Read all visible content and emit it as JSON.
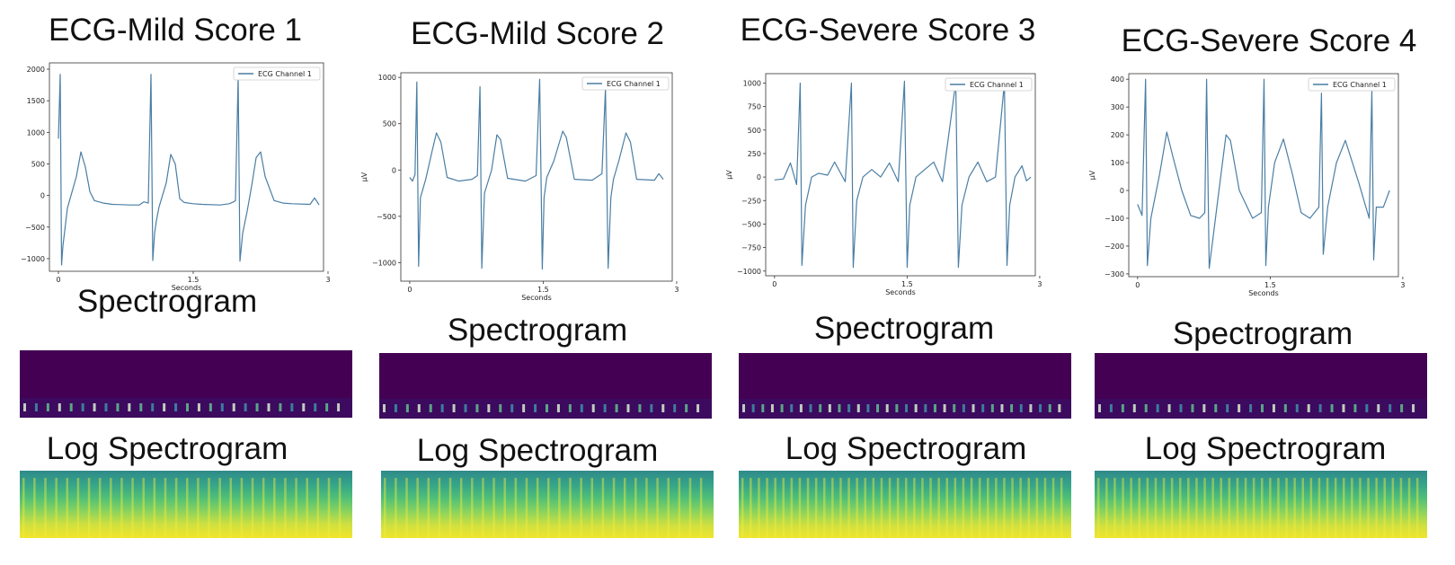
{
  "panels_meta": {
    "spectrogram_title": "Spectrogram",
    "log_spectrogram_title": "Log Spectrogram"
  },
  "chart_data": [
    {
      "type": "line",
      "title": "ECG-Mild Score 1",
      "xlabel": "Seconds",
      "ylabel": "",
      "xlim": [
        -0.1,
        2.95
      ],
      "ylim": [
        -1200,
        2100
      ],
      "xticks": [
        0,
        1.5,
        3
      ],
      "xtick_labels": [
        "0",
        "1.5",
        "3"
      ],
      "yticks": [
        -1000,
        -500,
        0,
        500,
        1000,
        1500,
        2000
      ],
      "ytick_labels": [
        "−1000",
        "−500",
        "0",
        "500",
        "1000",
        "1500",
        "2000"
      ],
      "legend": "top-right",
      "series": [
        {
          "name": "ECG Channel 1",
          "color": "#4a7ea4",
          "x": [
            0,
            0.02,
            0.035,
            0.05,
            0.1,
            0.2,
            0.25,
            0.3,
            0.35,
            0.4,
            0.5,
            0.6,
            0.8,
            0.9,
            0.95,
            1.0,
            1.03,
            1.05,
            1.07,
            1.09,
            1.12,
            1.2,
            1.25,
            1.3,
            1.35,
            1.4,
            1.5,
            1.6,
            1.8,
            1.9,
            1.95,
            1.97,
            2.0,
            2.02,
            2.05,
            2.1,
            2.15,
            2.2,
            2.25,
            2.3,
            2.4,
            2.5,
            2.6,
            2.8,
            2.85,
            2.88,
            2.9
          ],
          "y": [
            900,
            1920,
            -1100,
            -800,
            -200,
            300,
            690,
            450,
            60,
            -80,
            -120,
            -140,
            -150,
            -150,
            -100,
            -120,
            1920,
            -1030,
            -600,
            -400,
            -180,
            200,
            650,
            500,
            -50,
            -110,
            -130,
            -140,
            -150,
            -130,
            -100,
            -80,
            1880,
            -1040,
            -600,
            -250,
            150,
            600,
            690,
            300,
            -80,
            -120,
            -130,
            -140,
            -40,
            -100,
            -150
          ]
        }
      ]
    },
    {
      "type": "line",
      "title": "ECG-Mild Score 2",
      "xlabel": "Seconds",
      "ylabel": "μV",
      "xlim": [
        -0.1,
        2.95
      ],
      "ylim": [
        -1200,
        1050
      ],
      "xticks": [
        0,
        1.5,
        3
      ],
      "xtick_labels": [
        "0",
        "1.5",
        "3"
      ],
      "yticks": [
        -1000,
        -500,
        0,
        500,
        1000
      ],
      "ytick_labels": [
        "−1000",
        "−500",
        "0",
        "500",
        "1000"
      ],
      "legend": "top-right",
      "series": [
        {
          "name": "ECG Channel 1",
          "color": "#4a7ea4",
          "x": [
            0,
            0.03,
            0.06,
            0.08,
            0.1,
            0.12,
            0.18,
            0.25,
            0.3,
            0.35,
            0.42,
            0.55,
            0.7,
            0.76,
            0.79,
            0.81,
            0.84,
            0.92,
            0.98,
            1.02,
            1.1,
            1.3,
            1.42,
            1.46,
            1.49,
            1.51,
            1.54,
            1.62,
            1.72,
            1.76,
            1.85,
            2.05,
            2.16,
            2.2,
            2.23,
            2.26,
            2.29,
            2.35,
            2.43,
            2.48,
            2.55,
            2.75,
            2.8,
            2.85
          ],
          "y": [
            -80,
            -120,
            -50,
            950,
            -1040,
            -300,
            -100,
            200,
            400,
            300,
            -80,
            -120,
            -100,
            -60,
            900,
            -1060,
            -250,
            0,
            380,
            330,
            -90,
            -120,
            -60,
            980,
            -1070,
            -300,
            -80,
            100,
            420,
            350,
            -100,
            -110,
            -40,
            880,
            -1060,
            -300,
            -100,
            100,
            400,
            300,
            -100,
            -110,
            -40,
            -100
          ]
        }
      ]
    },
    {
      "type": "line",
      "title": "ECG-Severe Score 3",
      "xlabel": "Seconds",
      "ylabel": "μV",
      "xlim": [
        -0.1,
        2.95
      ],
      "ylim": [
        -1050,
        1100
      ],
      "xticks": [
        0,
        1.5,
        3
      ],
      "xtick_labels": [
        "0",
        "1.5",
        "3"
      ],
      "yticks": [
        -1000,
        -750,
        -500,
        -250,
        0,
        250,
        500,
        750,
        1000
      ],
      "ytick_labels": [
        "−1000",
        "−750",
        "−500",
        "−250",
        "0",
        "250",
        "500",
        "750",
        "1000"
      ],
      "legend": "top-right",
      "series": [
        {
          "name": "ECG Channel 1",
          "color": "#4a7ea4",
          "x": [
            0,
            0.1,
            0.18,
            0.25,
            0.29,
            0.31,
            0.35,
            0.42,
            0.5,
            0.6,
            0.68,
            0.8,
            0.87,
            0.89,
            0.93,
            1.0,
            1.1,
            1.2,
            1.3,
            1.4,
            1.47,
            1.5,
            1.53,
            1.6,
            1.7,
            1.8,
            1.9,
            2.05,
            2.08,
            2.12,
            2.2,
            2.3,
            2.4,
            2.5,
            2.6,
            2.63,
            2.66,
            2.72,
            2.8,
            2.85,
            2.9
          ],
          "y": [
            -30,
            -20,
            150,
            -80,
            1000,
            -940,
            -300,
            0,
            40,
            20,
            160,
            -50,
            1000,
            -960,
            -250,
            0,
            80,
            0,
            150,
            -50,
            1020,
            -960,
            -300,
            0,
            80,
            160,
            -50,
            1010,
            -960,
            -300,
            0,
            160,
            -50,
            0,
            1000,
            -940,
            -300,
            0,
            120,
            -40,
            0
          ]
        }
      ]
    },
    {
      "type": "line",
      "title": "ECG-Severe Score 4",
      "xlabel": "Seconds",
      "ylabel": "μV",
      "xlim": [
        -0.1,
        2.95
      ],
      "ylim": [
        -310,
        420
      ],
      "xticks": [
        0,
        1.5,
        3
      ],
      "xtick_labels": [
        "0",
        "1.5",
        "3"
      ],
      "yticks": [
        -300,
        -200,
        -100,
        0,
        100,
        200,
        300,
        400
      ],
      "ytick_labels": [
        "−300",
        "−200",
        "−100",
        "0",
        "100",
        "200",
        "300",
        "400"
      ],
      "legend": "top-right",
      "series": [
        {
          "name": "ECG Channel 1",
          "color": "#4a7ea4",
          "x": [
            0,
            0.05,
            0.09,
            0.11,
            0.15,
            0.25,
            0.33,
            0.4,
            0.5,
            0.6,
            0.7,
            0.76,
            0.78,
            0.81,
            0.9,
            1.0,
            1.05,
            1.15,
            1.3,
            1.4,
            1.43,
            1.45,
            1.48,
            1.55,
            1.65,
            1.75,
            1.85,
            1.95,
            2.05,
            2.08,
            2.1,
            2.15,
            2.25,
            2.35,
            2.5,
            2.62,
            2.65,
            2.67,
            2.7,
            2.78,
            2.85
          ],
          "y": [
            -50,
            -90,
            400,
            -270,
            -100,
            60,
            210,
            120,
            0,
            -90,
            -100,
            -80,
            400,
            -280,
            -50,
            200,
            180,
            0,
            -100,
            -80,
            400,
            -270,
            -60,
            100,
            185,
            60,
            -80,
            -100,
            -60,
            350,
            -230,
            -60,
            100,
            180,
            30,
            -100,
            360,
            -250,
            -60,
            -60,
            0
          ]
        }
      ]
    }
  ]
}
